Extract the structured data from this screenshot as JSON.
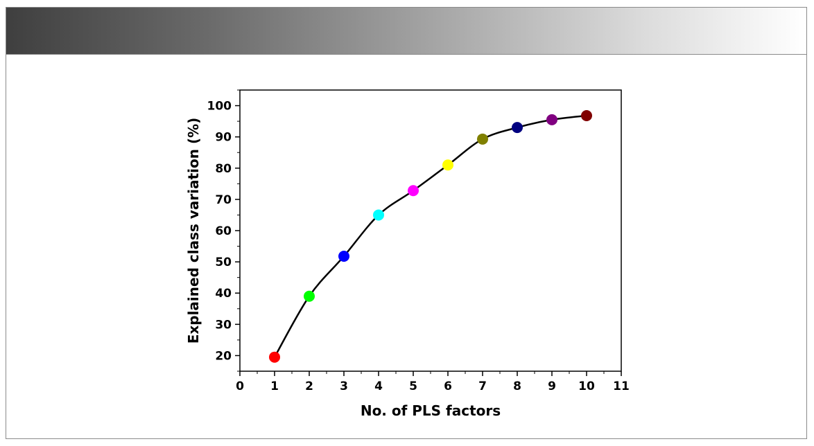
{
  "chart_data": {
    "type": "line",
    "title": "",
    "xlabel": "No. of PLS factors",
    "ylabel": "Explained class variation (%)",
    "xlim": [
      0,
      11
    ],
    "ylim": [
      15,
      105
    ],
    "x_ticks": [
      0,
      1,
      2,
      3,
      4,
      5,
      6,
      7,
      8,
      9,
      10,
      11
    ],
    "y_ticks": [
      20,
      30,
      40,
      50,
      60,
      70,
      80,
      90,
      100
    ],
    "grid": false,
    "legend": "none",
    "line_color": "#000000",
    "series": [
      {
        "x": [
          1,
          2,
          3,
          4,
          5,
          6,
          7,
          8,
          9,
          10
        ],
        "values": [
          19.5,
          39,
          51.8,
          65,
          72.8,
          81,
          89.3,
          93,
          95.5,
          96.8
        ],
        "marker_colors": [
          "#ff0000",
          "#00ff00",
          "#0000ff",
          "#00ffff",
          "#ff00ff",
          "#ffff00",
          "#808000",
          "#000080",
          "#800080",
          "#800000"
        ]
      }
    ]
  }
}
